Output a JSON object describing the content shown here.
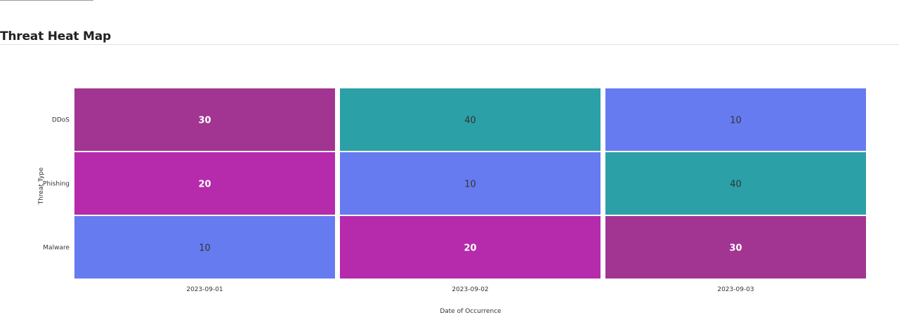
{
  "page": {
    "title": "Threat Heat Map"
  },
  "chart_data": {
    "type": "heatmap",
    "x": [
      "2023-09-01",
      "2023-09-02",
      "2023-09-03"
    ],
    "y": [
      "DDoS",
      "Phishing",
      "Malware"
    ],
    "values": [
      [
        30,
        40,
        10
      ],
      [
        20,
        10,
        40
      ],
      [
        10,
        20,
        30
      ]
    ],
    "xlabel": "Date of Occurrence",
    "ylabel": "Threat Type",
    "color_map": {
      "10": "#667bef",
      "20": "#b62aac",
      "30": "#a23592",
      "40": "#2ca0a7"
    },
    "label_colors": {
      "dark": "#333333",
      "light": "#ffffff"
    }
  }
}
